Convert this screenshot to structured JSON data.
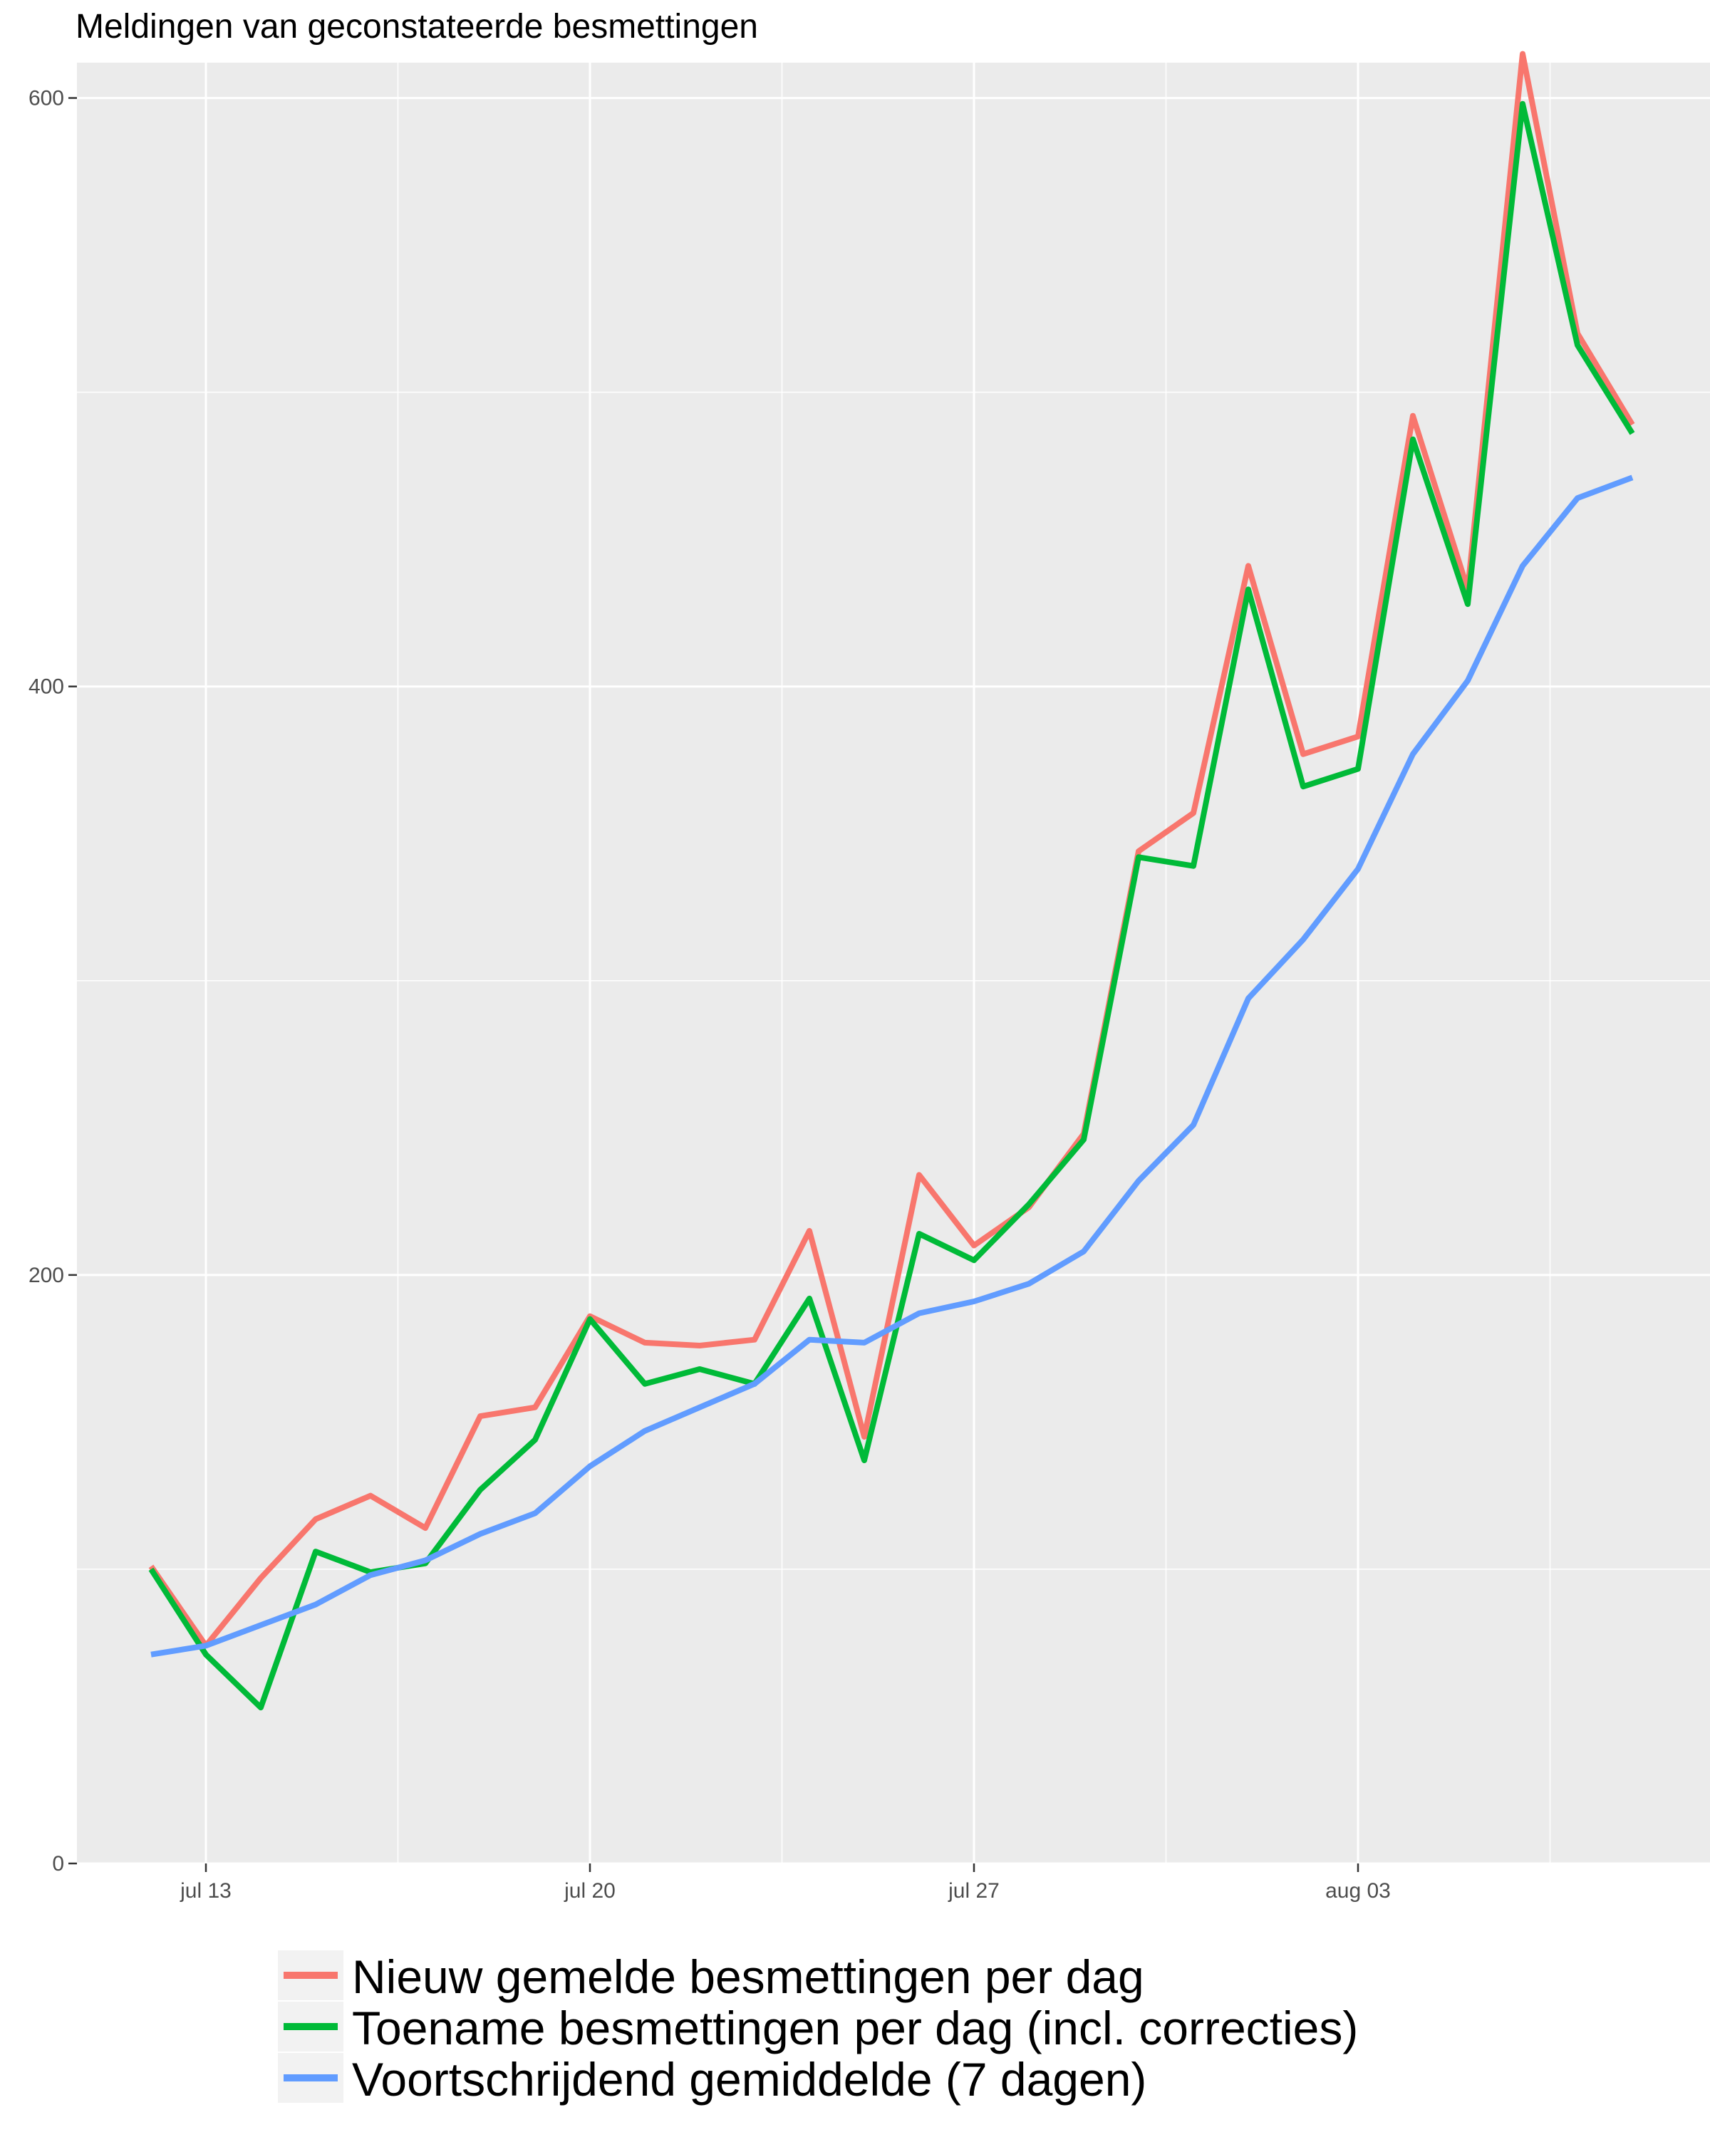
{
  "chart_data": {
    "type": "line",
    "title": "Meldingen van geconstateerde besmettingen",
    "xlabel": "",
    "ylabel": "",
    "x_start": "2020-07-12",
    "x": [
      "2020-07-12",
      "2020-07-13",
      "2020-07-14",
      "2020-07-15",
      "2020-07-16",
      "2020-07-17",
      "2020-07-18",
      "2020-07-19",
      "2020-07-20",
      "2020-07-21",
      "2020-07-22",
      "2020-07-23",
      "2020-07-24",
      "2020-07-25",
      "2020-07-26",
      "2020-07-27",
      "2020-07-28",
      "2020-07-29",
      "2020-07-30",
      "2020-07-31",
      "2020-08-01",
      "2020-08-02",
      "2020-08-03",
      "2020-08-04",
      "2020-08-05",
      "2020-08-06",
      "2020-08-07",
      "2020-08-08"
    ],
    "xticks": [
      {
        "x": "2020-07-13",
        "label": "jul 13"
      },
      {
        "x": "2020-07-20",
        "label": "jul 20"
      },
      {
        "x": "2020-07-27",
        "label": "jul 27"
      },
      {
        "x": "2020-08-03",
        "label": "aug 03"
      }
    ],
    "yticks": [
      0,
      200,
      400,
      600
    ],
    "ylim": [
      0,
      612
    ],
    "grid": true,
    "legend_position": "bottom",
    "series": [
      {
        "name": "Nieuw gemelde besmettingen per dag",
        "color": "#F8766D",
        "values": [
          101,
          74,
          97,
          117,
          125,
          114,
          152,
          155,
          186,
          177,
          176,
          178,
          215,
          145,
          234,
          210,
          223,
          248,
          344,
          357,
          441,
          377,
          383,
          492,
          433,
          615,
          520,
          489
        ]
      },
      {
        "name": "Toename besmettingen per dag (incl. correcties)",
        "color": "#00BA38",
        "values": [
          100,
          71,
          53,
          106,
          99,
          102,
          127,
          144,
          185,
          163,
          168,
          163,
          192,
          137,
          214,
          205,
          224,
          246,
          342,
          339,
          433,
          366,
          372,
          484,
          428,
          598,
          516,
          486
        ]
      },
      {
        "name": "Voortschrijdend gemiddelde (7 dagen)",
        "color": "#619CFF",
        "values": [
          71,
          74,
          81,
          88,
          98,
          103,
          112,
          119,
          135,
          147,
          155,
          163,
          178,
          177,
          187,
          191,
          197,
          208,
          232,
          251,
          294,
          314,
          338,
          377,
          402,
          441,
          464,
          471
        ]
      }
    ]
  }
}
